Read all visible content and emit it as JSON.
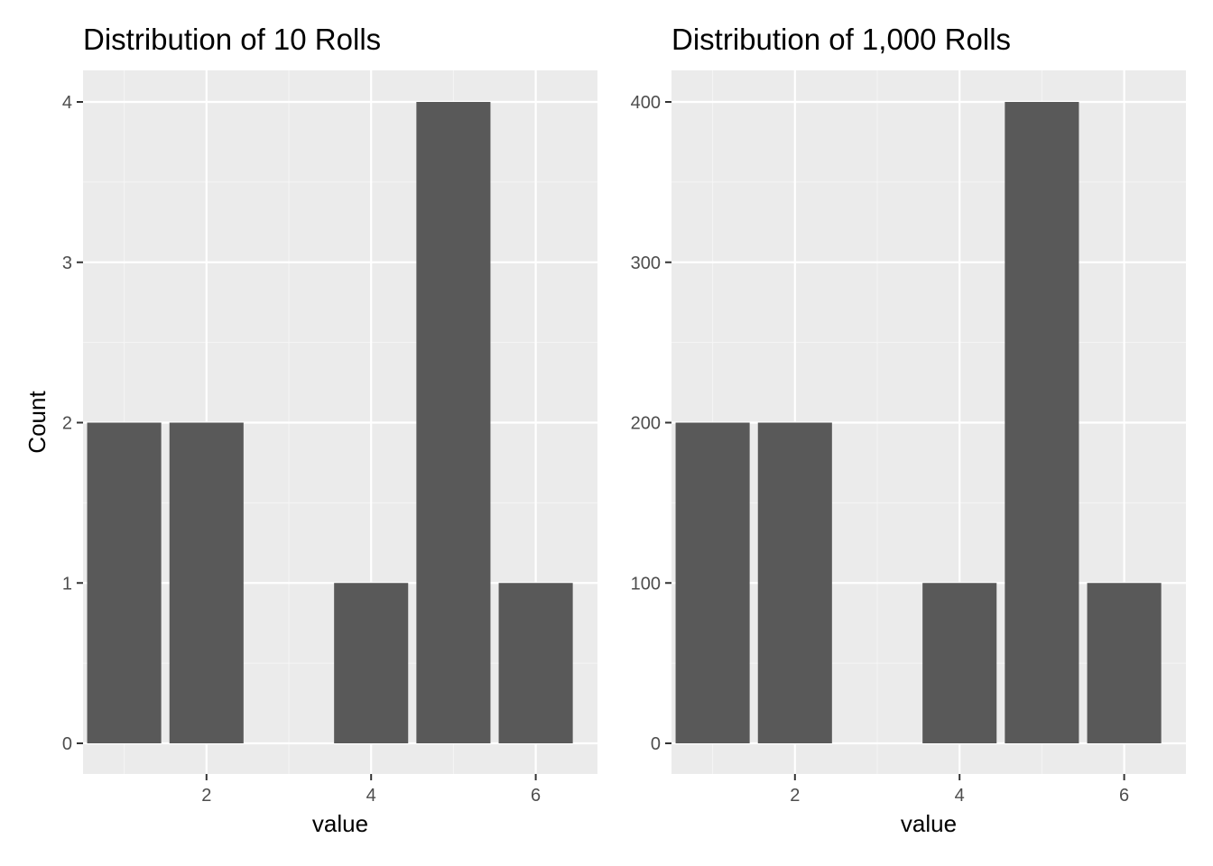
{
  "chart_data": [
    {
      "type": "bar",
      "title": "Distribution of 10 Rolls",
      "xlabel": "value",
      "ylabel": "Count",
      "x": [
        1,
        2,
        4,
        5,
        6
      ],
      "values": [
        2,
        2,
        1,
        4,
        1
      ],
      "xlim": [
        0.5,
        6.75
      ],
      "ylim": [
        0,
        4.2
      ],
      "xticks": [
        "2",
        "4",
        "6"
      ],
      "xtick_values": [
        2,
        4,
        6
      ],
      "yticks": [
        "0",
        "1",
        "2",
        "3",
        "4"
      ],
      "ytick_values": [
        0,
        1,
        2,
        3,
        4
      ],
      "grid": true
    },
    {
      "type": "bar",
      "title": "Distribution of 1,000 Rolls",
      "xlabel": "value",
      "ylabel": "",
      "x": [
        1,
        2,
        4,
        5,
        6
      ],
      "values": [
        200,
        200,
        100,
        400,
        100
      ],
      "xlim": [
        0.5,
        6.75
      ],
      "ylim": [
        0,
        420
      ],
      "xticks": [
        "2",
        "4",
        "6"
      ],
      "xtick_values": [
        2,
        4,
        6
      ],
      "yticks": [
        "0",
        "100",
        "200",
        "300",
        "400"
      ],
      "ytick_values": [
        0,
        100,
        200,
        300,
        400
      ],
      "grid": true
    }
  ],
  "colors": {
    "panel_background": "#ebebeb",
    "grid_major": "#ffffff",
    "grid_minor": "#f5f5f5",
    "bar_fill": "#595959",
    "tick_mark": "#333333",
    "tick_text": "#4d4d4d"
  }
}
